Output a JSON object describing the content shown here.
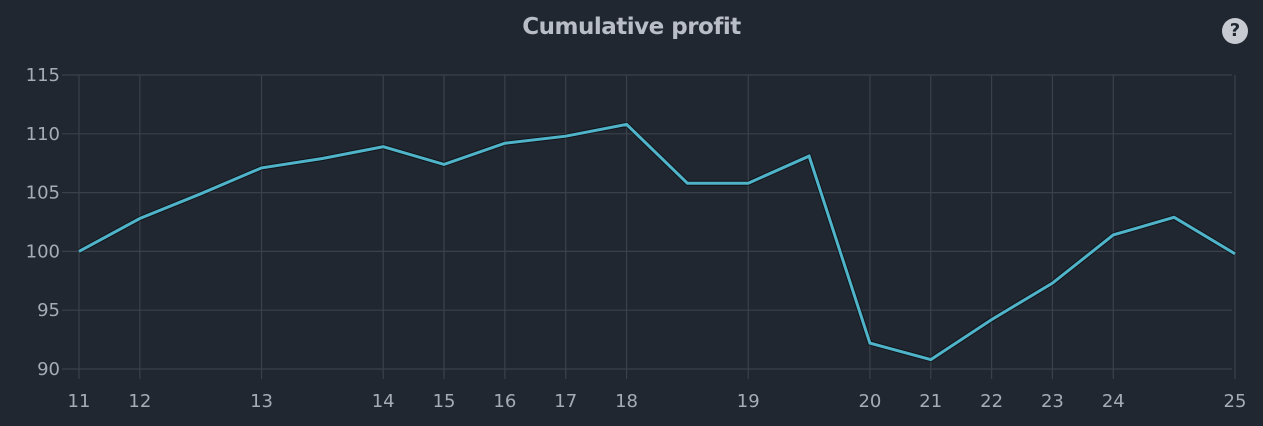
{
  "header": {
    "title": "Cumulative profit",
    "help_icon": "question-circle-icon",
    "help_symbol": "?"
  },
  "colors": {
    "background": "#212731",
    "line": "#4fb3c9",
    "grid": "#3b414b",
    "text": "#a7acb4"
  },
  "chart_data": {
    "type": "line",
    "title": "Cumulative profit",
    "xlabel": "",
    "ylabel": "",
    "ylim": [
      90,
      115
    ],
    "xlim": [
      11,
      25
    ],
    "grid": true,
    "legend": null,
    "y_ticks": [
      90,
      95,
      100,
      105,
      110,
      115
    ],
    "x_tick_labels": [
      "11",
      "12",
      "13",
      "14",
      "15",
      "16",
      "17",
      "18",
      "19",
      "20",
      "21",
      "22",
      "23",
      "24",
      "25"
    ],
    "x_tick_positions": [
      0,
      1,
      3,
      5,
      6,
      7,
      8,
      9,
      11,
      13,
      14,
      15,
      16,
      17,
      19
    ],
    "series": [
      {
        "name": "Cumulative profit",
        "color": "#4fb3c9",
        "values": [
          100.0,
          102.8,
          104.9,
          107.1,
          107.9,
          108.9,
          107.4,
          109.2,
          109.8,
          110.8,
          105.8,
          105.8,
          108.1,
          92.2,
          90.8,
          94.2,
          97.3,
          101.4,
          102.9,
          99.8
        ]
      }
    ]
  }
}
